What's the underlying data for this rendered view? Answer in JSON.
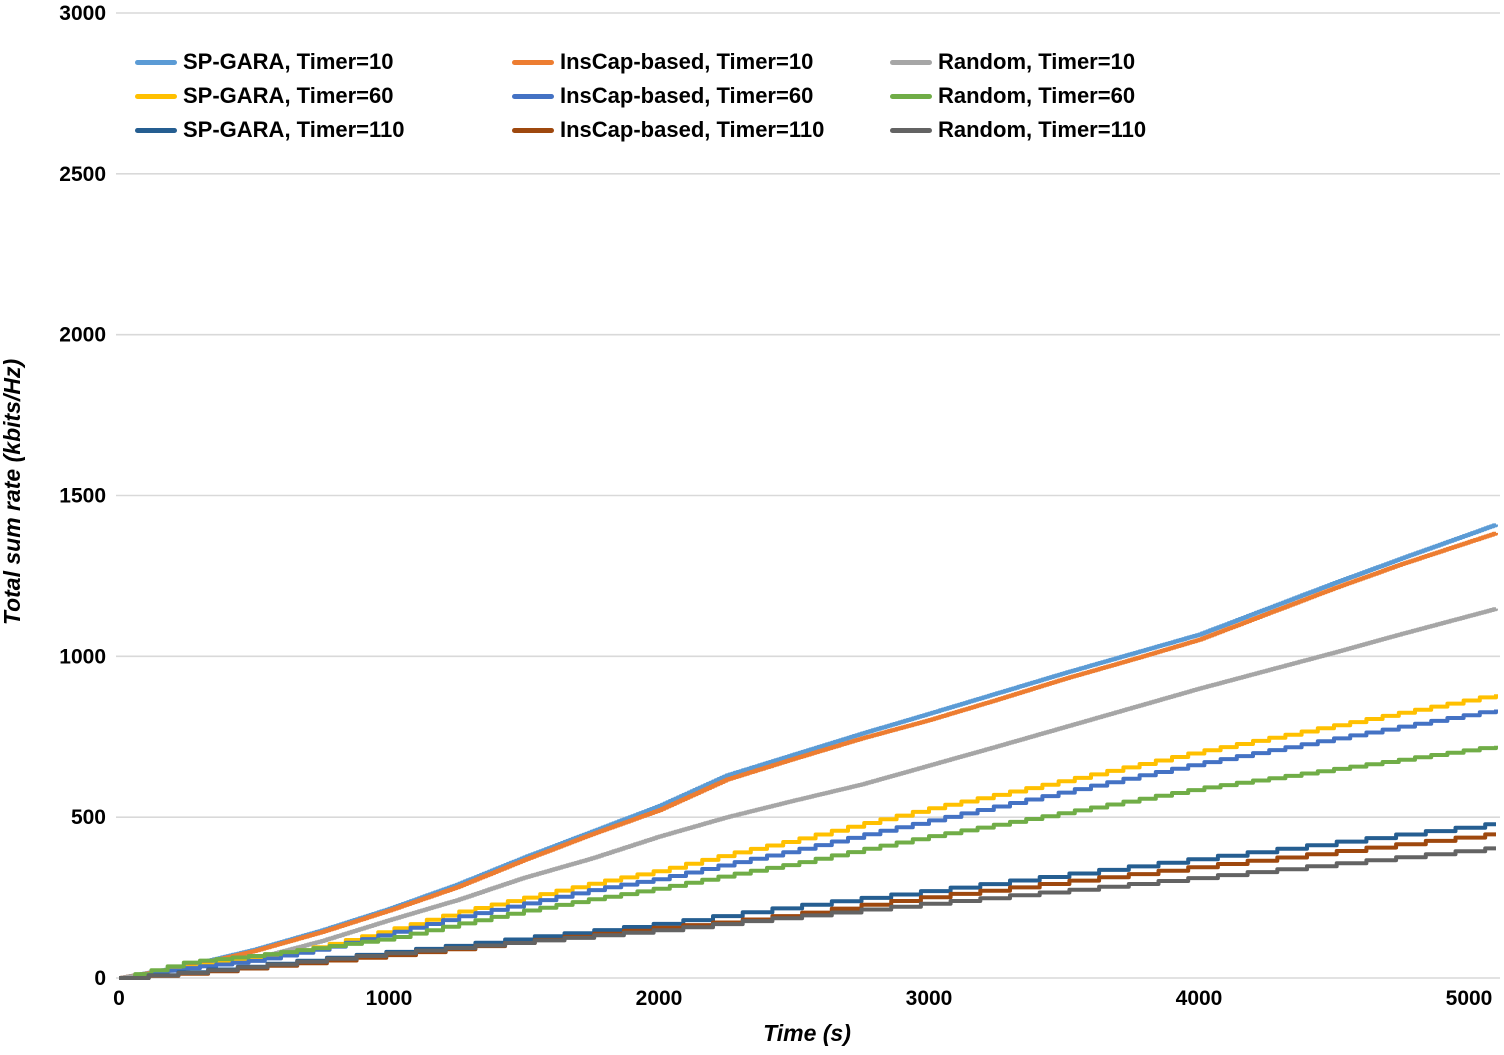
{
  "chart_data": {
    "type": "line",
    "title": "",
    "xlabel": "Time (s)",
    "ylabel": "Total sum rate (kbits/Hz)",
    "xlim": [
      0,
      5100
    ],
    "ylim": [
      0,
      3000
    ],
    "x_ticks": [
      0,
      1000,
      2000,
      3000,
      4000,
      5000
    ],
    "y_ticks": [
      0,
      500,
      1000,
      1500,
      2000,
      2500,
      3000
    ],
    "grid": "horizontal-only",
    "gridline_color": "#D9D9D9",
    "legend_position": "top-left inside plot, 3 columns x 3 rows",
    "line_style": "staircase; step width in seconds equals the series Timer value",
    "line_width": 4,
    "x": [
      0,
      250,
      500,
      750,
      1000,
      1250,
      1500,
      1750,
      2000,
      2250,
      2500,
      2750,
      3000,
      3250,
      3500,
      3750,
      4000,
      4250,
      4500,
      4750,
      5000
    ],
    "series": [
      {
        "name": "SP-GARA, Timer=10",
        "color": "#5B9BD5",
        "timer": 10,
        "values": [
          0,
          38,
          88,
          148,
          215,
          290,
          375,
          455,
          535,
          630,
          695,
          760,
          822,
          885,
          948,
          1008,
          1068,
          1148,
          1228,
          1305,
          1380
        ]
      },
      {
        "name": "InsCap-based, Timer=10",
        "color": "#ED7D31",
        "timer": 10,
        "values": [
          0,
          35,
          84,
          143,
          210,
          282,
          367,
          447,
          522,
          617,
          682,
          745,
          802,
          865,
          930,
          990,
          1052,
          1132,
          1212,
          1287,
          1356
        ]
      },
      {
        "name": "Random, Timer=10",
        "color": "#A6A6A6",
        "timer": 10,
        "values": [
          0,
          30,
          60,
          115,
          180,
          242,
          312,
          372,
          440,
          500,
          552,
          602,
          661,
          720,
          780,
          840,
          900,
          956,
          1012,
          1070,
          1126
        ]
      },
      {
        "name": "SP-GARA, Timer=60",
        "color": "#FFC000",
        "timer": 60,
        "values": [
          0,
          35,
          62,
          100,
          150,
          205,
          250,
          295,
          335,
          385,
          430,
          480,
          528,
          571,
          615,
          660,
          705,
          745,
          786,
          826,
          866
        ]
      },
      {
        "name": "InsCap-based, Timer=60",
        "color": "#4472C4",
        "timer": 60,
        "values": [
          0,
          32,
          55,
          92,
          140,
          190,
          232,
          275,
          310,
          355,
          398,
          445,
          490,
          535,
          580,
          625,
          668,
          707,
          745,
          783,
          820
        ]
      },
      {
        "name": "Random, Timer=60",
        "color": "#70AD47",
        "timer": 60,
        "values": [
          0,
          50,
          70,
          96,
          124,
          168,
          210,
          246,
          280,
          320,
          357,
          400,
          441,
          478,
          515,
          553,
          590,
          620,
          650,
          680,
          710
        ]
      },
      {
        "name": "SP-GARA, Timer=110",
        "color": "#255E91",
        "timer": 110,
        "values": [
          0,
          20,
          40,
          61,
          82,
          103,
          126,
          148,
          170,
          198,
          225,
          249,
          273,
          298,
          323,
          348,
          373,
          398,
          423,
          448,
          472
        ]
      },
      {
        "name": "InsCap-based, Timer=110",
        "color": "#9E480E",
        "timer": 110,
        "values": [
          0,
          15,
          34,
          53,
          72,
          93,
          115,
          137,
          158,
          176,
          200,
          228,
          254,
          277,
          301,
          324,
          348,
          371,
          394,
          418,
          441
        ]
      },
      {
        "name": "Random, Timer=110",
        "color": "#636363",
        "timer": 110,
        "values": [
          0,
          18,
          38,
          58,
          78,
          96,
          114,
          132,
          150,
          172,
          192,
          213,
          233,
          253,
          273,
          293,
          314,
          335,
          356,
          377,
          398
        ]
      }
    ]
  }
}
